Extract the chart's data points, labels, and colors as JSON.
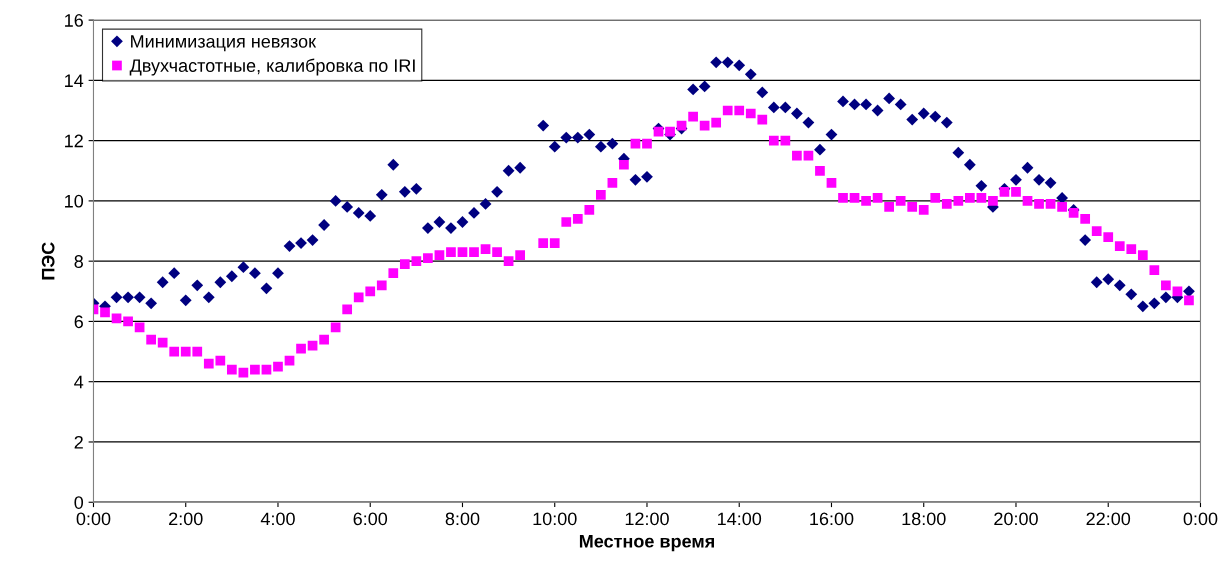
{
  "chart_data": {
    "type": "scatter",
    "xlabel": "Местное время",
    "ylabel": "ПЭС",
    "xlim": [
      0,
      24
    ],
    "xticks": [
      {
        "value": 0,
        "label": "0:00"
      },
      {
        "value": 2,
        "label": "2:00"
      },
      {
        "value": 4,
        "label": "4:00"
      },
      {
        "value": 6,
        "label": "6:00"
      },
      {
        "value": 8,
        "label": "8:00"
      },
      {
        "value": 10,
        "label": "10:00"
      },
      {
        "value": 12,
        "label": "12:00"
      },
      {
        "value": 14,
        "label": "14:00"
      },
      {
        "value": 16,
        "label": "16:00"
      },
      {
        "value": 18,
        "label": "18:00"
      },
      {
        "value": 20,
        "label": "20:00"
      },
      {
        "value": 22,
        "label": "22:00"
      },
      {
        "value": 24,
        "label": "0:00"
      }
    ],
    "ylim": [
      0,
      16
    ],
    "yticks": [
      0,
      2,
      4,
      6,
      8,
      10,
      12,
      14,
      16
    ],
    "grid": "y",
    "legend": "top left",
    "series": [
      {
        "name": "Минимизация невязок",
        "color": "#000080",
        "marker": "diamond",
        "x": [
          0,
          0.25,
          0.5,
          0.75,
          1.0,
          1.25,
          1.5,
          1.75,
          2.0,
          2.25,
          2.5,
          2.75,
          3.0,
          3.25,
          3.5,
          3.75,
          4.0,
          4.25,
          4.5,
          4.75,
          5.0,
          5.25,
          5.5,
          5.75,
          6.0,
          6.25,
          6.5,
          6.75,
          7.0,
          7.25,
          7.5,
          7.75,
          8.0,
          8.25,
          8.5,
          8.75,
          9.0,
          9.25,
          9.75,
          10.0,
          10.25,
          10.5,
          10.75,
          11.0,
          11.25,
          11.5,
          11.75,
          12.0,
          12.25,
          12.5,
          12.75,
          13.0,
          13.25,
          13.5,
          13.75,
          14.0,
          14.25,
          14.5,
          14.75,
          15.0,
          15.25,
          15.5,
          15.75,
          16.0,
          16.25,
          16.5,
          16.75,
          17.0,
          17.25,
          17.5,
          17.75,
          18.0,
          18.25,
          18.5,
          18.75,
          19.0,
          19.25,
          19.5,
          19.75,
          20.0,
          20.25,
          20.5,
          20.75,
          21.0,
          21.25,
          21.5,
          21.75,
          22.0,
          22.25,
          22.5,
          22.75,
          23.0,
          23.25,
          23.5,
          23.75
        ],
        "values": [
          6.6,
          6.5,
          6.8,
          6.8,
          6.8,
          6.6,
          7.3,
          7.6,
          6.7,
          7.2,
          6.8,
          7.3,
          7.5,
          7.8,
          7.6,
          7.1,
          7.6,
          8.5,
          8.6,
          8.7,
          9.2,
          10.0,
          9.8,
          9.6,
          9.5,
          10.2,
          11.2,
          10.3,
          10.4,
          9.1,
          9.3,
          9.1,
          9.3,
          9.6,
          9.9,
          10.3,
          11.0,
          11.1,
          12.5,
          11.8,
          12.1,
          12.1,
          12.2,
          11.8,
          11.9,
          11.4,
          10.7,
          10.8,
          12.4,
          12.2,
          12.4,
          13.7,
          13.8,
          14.6,
          14.6,
          14.5,
          14.2,
          13.6,
          13.1,
          13.1,
          12.9,
          12.6,
          11.7,
          12.2,
          13.3,
          13.2,
          13.2,
          13.0,
          13.4,
          13.2,
          12.7,
          12.9,
          12.8,
          12.6,
          11.6,
          11.2,
          10.5,
          9.8,
          10.4,
          10.7,
          11.1,
          10.7,
          10.6,
          10.1,
          9.7,
          8.7,
          7.3,
          7.4,
          7.2,
          6.9,
          6.5,
          6.6,
          6.8,
          6.8,
          7.0
        ]
      },
      {
        "name": "Двухчастотные, калибровка по IRI",
        "color": "#ff00ff",
        "marker": "square",
        "x": [
          0,
          0.25,
          0.5,
          0.75,
          1.0,
          1.25,
          1.5,
          1.75,
          2.0,
          2.25,
          2.5,
          2.75,
          3.0,
          3.25,
          3.5,
          3.75,
          4.0,
          4.25,
          4.5,
          4.75,
          5.0,
          5.25,
          5.5,
          5.75,
          6.0,
          6.25,
          6.5,
          6.75,
          7.0,
          7.25,
          7.5,
          7.75,
          8.0,
          8.25,
          8.5,
          8.75,
          9.0,
          9.25,
          9.75,
          10.0,
          10.25,
          10.5,
          10.75,
          11.0,
          11.25,
          11.5,
          11.75,
          12.0,
          12.25,
          12.5,
          12.75,
          13.0,
          13.25,
          13.5,
          13.75,
          14.0,
          14.25,
          14.5,
          14.75,
          15.0,
          15.25,
          15.5,
          15.75,
          16.0,
          16.25,
          16.5,
          16.75,
          17.0,
          17.25,
          17.5,
          17.75,
          18.0,
          18.25,
          18.5,
          18.75,
          19.0,
          19.25,
          19.5,
          19.75,
          20.0,
          20.25,
          20.5,
          20.75,
          21.0,
          21.25,
          21.5,
          21.75,
          22.0,
          22.25,
          22.5,
          22.75,
          23.0,
          23.25,
          23.5,
          23.75
        ],
        "values": [
          6.4,
          6.3,
          6.1,
          6.0,
          5.8,
          5.4,
          5.3,
          5.0,
          5.0,
          5.0,
          4.6,
          4.7,
          4.4,
          4.3,
          4.4,
          4.4,
          4.5,
          4.7,
          5.1,
          5.2,
          5.4,
          5.8,
          6.4,
          6.8,
          7.0,
          7.2,
          7.6,
          7.9,
          8.0,
          8.1,
          8.2,
          8.3,
          8.3,
          8.3,
          8.4,
          8.3,
          8.0,
          8.2,
          8.6,
          8.6,
          9.3,
          9.4,
          9.7,
          10.2,
          10.6,
          11.2,
          11.9,
          11.9,
          12.3,
          12.3,
          12.5,
          12.8,
          12.5,
          12.6,
          13.0,
          13.0,
          12.9,
          12.7,
          12.0,
          12.0,
          11.5,
          11.5,
          11.0,
          10.6,
          10.1,
          10.1,
          10.0,
          10.1,
          9.8,
          10.0,
          9.8,
          9.7,
          10.1,
          9.9,
          10.0,
          10.1,
          10.1,
          10.0,
          10.3,
          10.3,
          10.0,
          9.9,
          9.9,
          9.8,
          9.6,
          9.4,
          9.0,
          8.8,
          8.5,
          8.4,
          8.2,
          7.7,
          7.2,
          7.0,
          6.7
        ]
      }
    ]
  }
}
